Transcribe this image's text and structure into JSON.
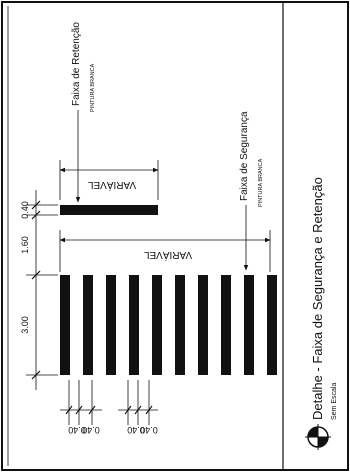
{
  "title": "Detalhe - Faixa de Segurança e Retenção",
  "scale_note": "Sem Escala",
  "retention": {
    "label": "Faixa de Retenção",
    "note": "PINTURA BRANCA"
  },
  "safety": {
    "label": "Faixa de Segurança",
    "note": "PINTURA BRANCA"
  },
  "width_label": "VARIÁVEL",
  "dimensions": {
    "retention_width": "0.40",
    "gap": "1.60",
    "safety_length": "3.00",
    "stripe_width": "0.40",
    "stripe_gap": "0.40"
  },
  "safety_stripe_count": 10,
  "colors": {
    "ink": "#111111",
    "paper": "#ffffff"
  }
}
